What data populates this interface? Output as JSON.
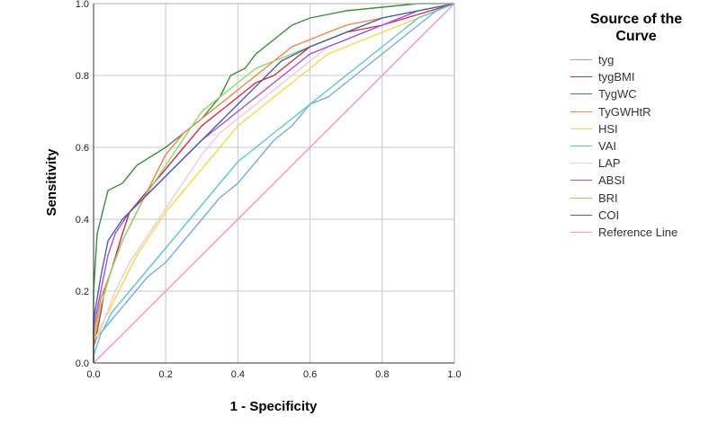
{
  "chart_data": {
    "type": "line",
    "title": "",
    "xlabel": "1 - Specificity",
    "ylabel": "Sensitivity",
    "xlim": [
      0,
      1
    ],
    "ylim": [
      0,
      1
    ],
    "x_ticks": [
      "0.0",
      "0.2",
      "0.4",
      "0.6",
      "0.8",
      "1.0"
    ],
    "y_ticks": [
      "0.0",
      "0.2",
      "0.4",
      "0.6",
      "0.8",
      "1.0"
    ],
    "grid": true,
    "legend_title": "Source of the Curve",
    "legend_position": "right",
    "series": [
      {
        "name": "tyg",
        "color": "#7eaad6",
        "points": [
          [
            0,
            0
          ],
          [
            0,
            0.06
          ],
          [
            0.05,
            0.12
          ],
          [
            0.1,
            0.18
          ],
          [
            0.15,
            0.24
          ],
          [
            0.2,
            0.28
          ],
          [
            0.25,
            0.34
          ],
          [
            0.3,
            0.4
          ],
          [
            0.35,
            0.46
          ],
          [
            0.4,
            0.5
          ],
          [
            0.45,
            0.56
          ],
          [
            0.5,
            0.62
          ],
          [
            0.55,
            0.66
          ],
          [
            0.6,
            0.72
          ],
          [
            0.65,
            0.74
          ],
          [
            0.7,
            0.78
          ],
          [
            0.75,
            0.82
          ],
          [
            0.8,
            0.86
          ],
          [
            0.85,
            0.9
          ],
          [
            0.9,
            0.94
          ],
          [
            0.95,
            0.98
          ],
          [
            1,
            1
          ]
        ]
      },
      {
        "name": "tygBMI",
        "color": "#c9304a",
        "points": [
          [
            0,
            0
          ],
          [
            0,
            0.04
          ],
          [
            0.02,
            0.14
          ],
          [
            0.03,
            0.2
          ],
          [
            0.05,
            0.26
          ],
          [
            0.08,
            0.36
          ],
          [
            0.1,
            0.42
          ],
          [
            0.15,
            0.48
          ],
          [
            0.2,
            0.54
          ],
          [
            0.25,
            0.6
          ],
          [
            0.3,
            0.66
          ],
          [
            0.35,
            0.7
          ],
          [
            0.4,
            0.74
          ],
          [
            0.45,
            0.78
          ],
          [
            0.5,
            0.8
          ],
          [
            0.55,
            0.84
          ],
          [
            0.6,
            0.88
          ],
          [
            0.65,
            0.9
          ],
          [
            0.7,
            0.92
          ],
          [
            0.8,
            0.94
          ],
          [
            0.9,
            0.97
          ],
          [
            1,
            1
          ]
        ]
      },
      {
        "name": "TygWC",
        "color": "#3a8e3a",
        "points": [
          [
            0,
            0
          ],
          [
            0,
            0.2
          ],
          [
            0.01,
            0.36
          ],
          [
            0.04,
            0.48
          ],
          [
            0.08,
            0.5
          ],
          [
            0.12,
            0.55
          ],
          [
            0.2,
            0.6
          ],
          [
            0.25,
            0.64
          ],
          [
            0.3,
            0.68
          ],
          [
            0.35,
            0.74
          ],
          [
            0.38,
            0.8
          ],
          [
            0.42,
            0.82
          ],
          [
            0.45,
            0.86
          ],
          [
            0.5,
            0.9
          ],
          [
            0.55,
            0.94
          ],
          [
            0.6,
            0.96
          ],
          [
            0.7,
            0.98
          ],
          [
            0.8,
            0.99
          ],
          [
            0.9,
            1
          ],
          [
            1,
            1
          ]
        ]
      },
      {
        "name": "TyGWHtR",
        "color": "#ef8450",
        "points": [
          [
            0,
            0
          ],
          [
            0,
            0.08
          ],
          [
            0.02,
            0.18
          ],
          [
            0.05,
            0.26
          ],
          [
            0.08,
            0.34
          ],
          [
            0.12,
            0.42
          ],
          [
            0.16,
            0.5
          ],
          [
            0.2,
            0.58
          ],
          [
            0.25,
            0.64
          ],
          [
            0.3,
            0.68
          ],
          [
            0.35,
            0.72
          ],
          [
            0.4,
            0.76
          ],
          [
            0.45,
            0.8
          ],
          [
            0.5,
            0.84
          ],
          [
            0.55,
            0.88
          ],
          [
            0.6,
            0.9
          ],
          [
            0.65,
            0.92
          ],
          [
            0.7,
            0.94
          ],
          [
            0.8,
            0.96
          ],
          [
            0.9,
            0.98
          ],
          [
            1,
            1
          ]
        ]
      },
      {
        "name": "HSI",
        "color": "#f2d94a",
        "points": [
          [
            0,
            0
          ],
          [
            0,
            0.06
          ],
          [
            0.04,
            0.14
          ],
          [
            0.08,
            0.22
          ],
          [
            0.12,
            0.3
          ],
          [
            0.16,
            0.36
          ],
          [
            0.2,
            0.42
          ],
          [
            0.25,
            0.48
          ],
          [
            0.3,
            0.54
          ],
          [
            0.35,
            0.6
          ],
          [
            0.4,
            0.66
          ],
          [
            0.45,
            0.7
          ],
          [
            0.5,
            0.74
          ],
          [
            0.55,
            0.78
          ],
          [
            0.6,
            0.82
          ],
          [
            0.65,
            0.86
          ],
          [
            0.7,
            0.88
          ],
          [
            0.75,
            0.9
          ],
          [
            0.8,
            0.92
          ],
          [
            0.85,
            0.94
          ],
          [
            0.9,
            0.96
          ],
          [
            0.95,
            0.98
          ],
          [
            1,
            1
          ]
        ]
      },
      {
        "name": "VAI",
        "color": "#5cc6cc",
        "points": [
          [
            0,
            0
          ],
          [
            0,
            0.02
          ],
          [
            0.02,
            0.08
          ],
          [
            0.05,
            0.14
          ],
          [
            0.1,
            0.2
          ],
          [
            0.15,
            0.26
          ],
          [
            0.2,
            0.32
          ],
          [
            0.25,
            0.38
          ],
          [
            0.3,
            0.44
          ],
          [
            0.35,
            0.5
          ],
          [
            0.4,
            0.56
          ],
          [
            0.45,
            0.6
          ],
          [
            0.5,
            0.64
          ],
          [
            0.55,
            0.68
          ],
          [
            0.6,
            0.72
          ],
          [
            0.65,
            0.76
          ],
          [
            0.7,
            0.8
          ],
          [
            0.75,
            0.84
          ],
          [
            0.8,
            0.88
          ],
          [
            0.85,
            0.92
          ],
          [
            0.9,
            0.96
          ],
          [
            1,
            1
          ]
        ]
      },
      {
        "name": "LAP",
        "color": "#f4c8d8",
        "points": [
          [
            0,
            0
          ],
          [
            0,
            0.04
          ],
          [
            0.03,
            0.12
          ],
          [
            0.06,
            0.2
          ],
          [
            0.1,
            0.28
          ],
          [
            0.14,
            0.34
          ],
          [
            0.18,
            0.4
          ],
          [
            0.22,
            0.46
          ],
          [
            0.26,
            0.52
          ],
          [
            0.3,
            0.58
          ],
          [
            0.35,
            0.64
          ],
          [
            0.4,
            0.68
          ],
          [
            0.45,
            0.72
          ],
          [
            0.5,
            0.76
          ],
          [
            0.55,
            0.8
          ],
          [
            0.6,
            0.84
          ],
          [
            0.65,
            0.88
          ],
          [
            0.7,
            0.9
          ],
          [
            0.75,
            0.92
          ],
          [
            0.8,
            0.94
          ],
          [
            0.85,
            0.96
          ],
          [
            0.9,
            0.98
          ],
          [
            1,
            1
          ]
        ]
      },
      {
        "name": "ABSI",
        "color": "#a24fe0",
        "points": [
          [
            0,
            0
          ],
          [
            0,
            0.1
          ],
          [
            0.02,
            0.2
          ],
          [
            0.04,
            0.3
          ],
          [
            0.06,
            0.36
          ],
          [
            0.1,
            0.42
          ],
          [
            0.14,
            0.46
          ],
          [
            0.18,
            0.5
          ],
          [
            0.22,
            0.54
          ],
          [
            0.26,
            0.58
          ],
          [
            0.3,
            0.62
          ],
          [
            0.35,
            0.66
          ],
          [
            0.4,
            0.7
          ],
          [
            0.45,
            0.74
          ],
          [
            0.5,
            0.78
          ],
          [
            0.55,
            0.82
          ],
          [
            0.6,
            0.86
          ],
          [
            0.65,
            0.88
          ],
          [
            0.7,
            0.9
          ],
          [
            0.75,
            0.92
          ],
          [
            0.8,
            0.94
          ],
          [
            0.85,
            0.96
          ],
          [
            0.9,
            0.98
          ],
          [
            1,
            1
          ]
        ]
      },
      {
        "name": "BRI",
        "color": "#8fd46f",
        "points": [
          [
            0,
            0
          ],
          [
            0,
            0.06
          ],
          [
            0.02,
            0.16
          ],
          [
            0.05,
            0.26
          ],
          [
            0.08,
            0.34
          ],
          [
            0.11,
            0.4
          ],
          [
            0.14,
            0.46
          ],
          [
            0.18,
            0.52
          ],
          [
            0.22,
            0.58
          ],
          [
            0.26,
            0.64
          ],
          [
            0.3,
            0.7
          ],
          [
            0.35,
            0.74
          ],
          [
            0.4,
            0.78
          ],
          [
            0.45,
            0.82
          ],
          [
            0.5,
            0.84
          ],
          [
            0.55,
            0.86
          ],
          [
            0.6,
            0.88
          ],
          [
            0.65,
            0.9
          ],
          [
            0.7,
            0.92
          ],
          [
            0.75,
            0.94
          ],
          [
            0.8,
            0.96
          ],
          [
            0.85,
            0.97
          ],
          [
            0.9,
            0.98
          ],
          [
            1,
            1
          ]
        ]
      },
      {
        "name": "COI",
        "color": "#4a5fa8",
        "points": [
          [
            0,
            0
          ],
          [
            0,
            0.12
          ],
          [
            0.02,
            0.24
          ],
          [
            0.04,
            0.34
          ],
          [
            0.08,
            0.4
          ],
          [
            0.12,
            0.44
          ],
          [
            0.16,
            0.48
          ],
          [
            0.2,
            0.52
          ],
          [
            0.24,
            0.56
          ],
          [
            0.28,
            0.6
          ],
          [
            0.32,
            0.64
          ],
          [
            0.36,
            0.68
          ],
          [
            0.4,
            0.72
          ],
          [
            0.44,
            0.76
          ],
          [
            0.48,
            0.8
          ],
          [
            0.52,
            0.84
          ],
          [
            0.56,
            0.86
          ],
          [
            0.6,
            0.88
          ],
          [
            0.65,
            0.9
          ],
          [
            0.7,
            0.92
          ],
          [
            0.75,
            0.94
          ],
          [
            0.8,
            0.96
          ],
          [
            0.85,
            0.97
          ],
          [
            0.9,
            0.98
          ],
          [
            1,
            1
          ]
        ]
      },
      {
        "name": "Reference Line",
        "color": "#f095c6",
        "points": [
          [
            0,
            0
          ],
          [
            1,
            1
          ]
        ]
      }
    ]
  }
}
